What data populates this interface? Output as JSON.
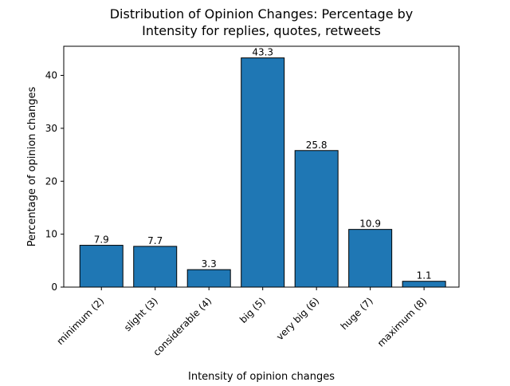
{
  "chart_data": {
    "type": "bar",
    "title": "Distribution of Opinion Changes: Percentage by Intensity for replies, quotes, retweets",
    "title_lines": [
      "Distribution of Opinion Changes: Percentage by",
      "Intensity for replies, quotes, retweets"
    ],
    "xlabel": "Intensity of opinion changes",
    "ylabel": "Percentage of opinion changes",
    "categories": [
      "minimum (2)",
      "slight (3)",
      "considerable (4)",
      "big (5)",
      "very big (6)",
      "huge (7)",
      "maximum (8)"
    ],
    "values": [
      7.9,
      7.7,
      3.3,
      43.3,
      25.8,
      10.9,
      1.1
    ],
    "value_labels": [
      "7.9",
      "7.7",
      "3.3",
      "43.3",
      "25.8",
      "10.9",
      "1.1"
    ],
    "ylim": [
      0,
      45.5
    ],
    "yticks": [
      0,
      10,
      20,
      30,
      40
    ],
    "ytick_labels": [
      "0",
      "10",
      "20",
      "30",
      "40"
    ],
    "grid": false,
    "colors": {
      "bar_fill": "#1f77b4",
      "bar_edge": "#000000",
      "axis": "#000000",
      "text": "#000000"
    }
  }
}
